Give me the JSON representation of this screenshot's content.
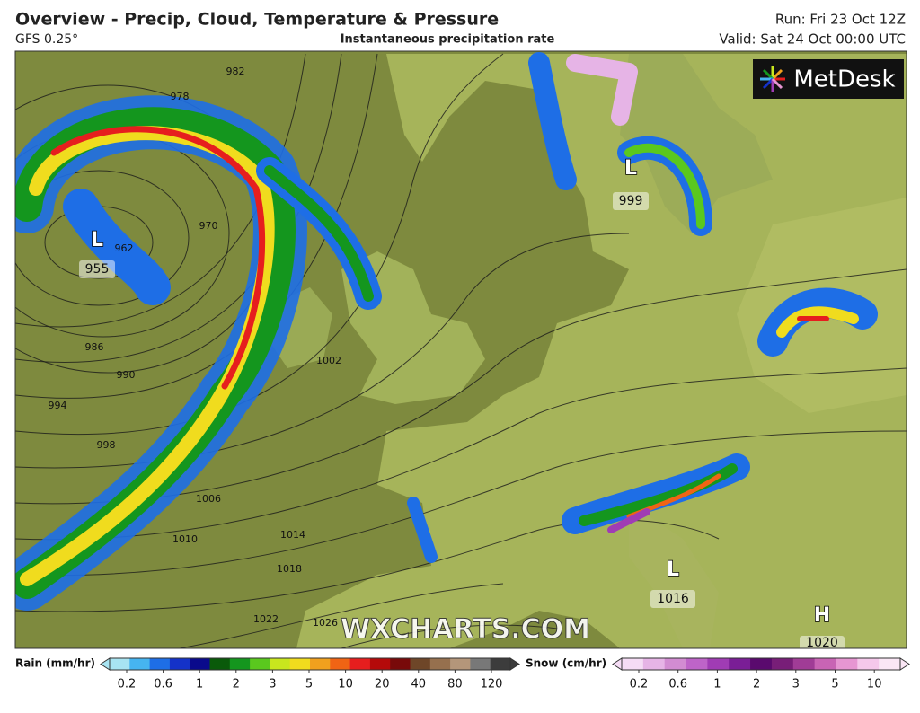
{
  "header": {
    "title": "Overview - Precip, Cloud, Temperature & Pressure",
    "model": "GFS 0.25°",
    "subtitle": "Instantaneous precipitation rate",
    "run": "Run: Fri 23 Oct 12Z",
    "valid": "Valid: Sat 24 Oct 00:00 UTC"
  },
  "map": {
    "logo": "MetDesk",
    "watermark": "WXCHARTS.COM",
    "centers": [
      {
        "letter": "L",
        "value": "955"
      },
      {
        "letter": "L",
        "value": "999"
      },
      {
        "letter": "L",
        "value": "1016"
      },
      {
        "letter": "H",
        "value": "1020"
      }
    ],
    "isobar_labels": [
      "962",
      "970",
      "978",
      "982",
      "986",
      "990",
      "994",
      "998",
      "1002",
      "1006",
      "1010",
      "1014",
      "1018",
      "1022",
      "1026"
    ]
  },
  "rain_legend": {
    "label": "Rain (mm/hr)",
    "ticks": [
      0.2,
      0.6,
      1,
      2,
      3,
      5,
      10,
      20,
      40,
      80,
      120
    ],
    "colors": [
      "#a8e4f2",
      "#46b4f0",
      "#1e6ee6",
      "#1432c8",
      "#0a0a8c",
      "#0a5a0a",
      "#14961e",
      "#5ac81e",
      "#c8e61e",
      "#f0dc1e",
      "#f0a01e",
      "#f06414",
      "#e61e1e",
      "#b40a0a",
      "#780a0a",
      "#6e4628",
      "#96704e",
      "#b4967a",
      "#787878",
      "#3c3c3c"
    ]
  },
  "snow_legend": {
    "label": "Snow (cm/hr)",
    "ticks": [
      0.2,
      0.6,
      1,
      2,
      3,
      5,
      10
    ],
    "colors": [
      "#f5dcf5",
      "#e6b4e6",
      "#d28cd2",
      "#be64c8",
      "#a03cb4",
      "#7a1e96",
      "#5a0a6e",
      "#781e78",
      "#a03c96",
      "#c864b4",
      "#e696d2",
      "#f5c8eb",
      "#fae6f5"
    ]
  }
}
